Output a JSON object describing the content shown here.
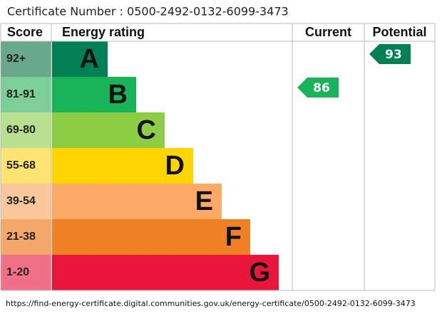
{
  "certificate": "Certificate Number : 0500-2492-0132-6099-3473",
  "headers": [
    "Score",
    "Energy rating",
    "Current",
    "Potential"
  ],
  "bands": [
    {
      "score": "92+",
      "letter": "A",
      "color": "#008054",
      "tint": "#6aa88b"
    },
    {
      "score": "81-91",
      "letter": "B",
      "color": "#19b459",
      "tint": "#7ccf96"
    },
    {
      "score": "69-80",
      "letter": "C",
      "color": "#8dce46",
      "tint": "#b9e08f"
    },
    {
      "score": "55-68",
      "letter": "D",
      "color": "#ffd500",
      "tint": "#ffe473"
    },
    {
      "score": "39-54",
      "letter": "E",
      "color": "#fcaa65",
      "tint": "#fbc89b"
    },
    {
      "score": "21-38",
      "letter": "F",
      "color": "#ef8023",
      "tint": "#f3a769"
    },
    {
      "score": "1-20",
      "letter": "G",
      "color": "#e9153b",
      "tint": "#f07088"
    }
  ],
  "current": 86,
  "potential": 93,
  "url": "https://find-energy-certificate.digital.communities.gov.uk/energy-certificate/0500-2492-0132-6099-3473"
}
